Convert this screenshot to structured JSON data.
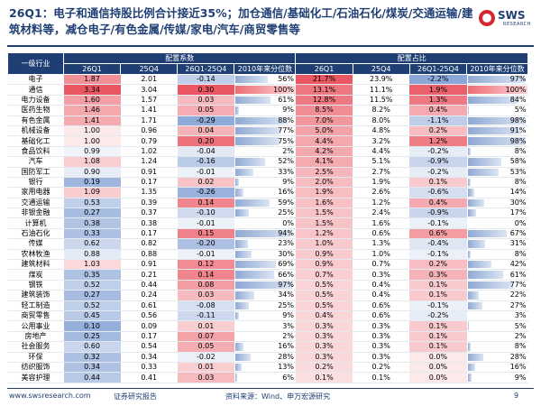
{
  "header": {
    "title": "26Q1：电子和通信持股比例合计接近35%；加仓通信/基础化工/石油石化/煤炭/交通运输/建筑材料等，减仓电子/有色金属/传媒/家电/汽车/商贸零售等",
    "logo": "SWS",
    "logo_sub": "RESEARCH"
  },
  "table": {
    "row_header": "一级行业",
    "groups": [
      "配置系数",
      "配置占比"
    ],
    "columns": [
      "26Q1",
      "25Q4",
      "26Q1-25Q4",
      "2010年来分位数",
      "26Q1",
      "25Q4",
      "26Q1-25Q4",
      "2010年来分位数"
    ],
    "rows": [
      [
        "电子",
        "1.87",
        "2.01",
        "-0.14",
        "56%",
        "21.7%",
        "23.9%",
        "-2.2%",
        "97%"
      ],
      [
        "通信",
        "3.34",
        "3.04",
        "0.30",
        "100%",
        "13.1%",
        "11.1%",
        "1.9%",
        "100%"
      ],
      [
        "电力设备",
        "1.60",
        "1.57",
        "0.03",
        "61%",
        "12.8%",
        "11.5%",
        "1.3%",
        "84%"
      ],
      [
        "医药生物",
        "1.46",
        "1.41",
        "0.05",
        "9%",
        "8.5%",
        "8.2%",
        "0.4%",
        "5%"
      ],
      [
        "有色金属",
        "1.41",
        "1.71",
        "-0.29",
        "88%",
        "7.0%",
        "8.0%",
        "-1.1%",
        "98%"
      ],
      [
        "机械设备",
        "1.00",
        "0.96",
        "0.04",
        "77%",
        "5.0%",
        "4.8%",
        "0.2%",
        "91%"
      ],
      [
        "基础化工",
        "1.00",
        "0.79",
        "0.20",
        "75%",
        "4.4%",
        "3.2%",
        "1.2%",
        "98%"
      ],
      [
        "食品饮料",
        "0.99",
        "1.02",
        "-0.04",
        "2%",
        "4.2%",
        "4.4%",
        "-0.2%",
        "8%"
      ],
      [
        "汽车",
        "1.08",
        "1.24",
        "-0.16",
        "52%",
        "4.1%",
        "5.1%",
        "-0.9%",
        "58%"
      ],
      [
        "国防军工",
        "0.90",
        "0.91",
        "-0.01",
        "33%",
        "2.5%",
        "2.7%",
        "-0.2%",
        "53%"
      ],
      [
        "银行",
        "0.19",
        "0.17",
        "0.02",
        "9%",
        "2.0%",
        "1.9%",
        "0.1%",
        "8%"
      ],
      [
        "家用电器",
        "1.09",
        "1.35",
        "-0.26",
        "16%",
        "1.9%",
        "2.6%",
        "-0.6%",
        "14%"
      ],
      [
        "交通运输",
        "0.53",
        "0.39",
        "0.14",
        "59%",
        "1.6%",
        "1.2%",
        "0.4%",
        "30%"
      ],
      [
        "非银金融",
        "0.27",
        "0.37",
        "-0.10",
        "25%",
        "1.5%",
        "2.4%",
        "-0.9%",
        "17%"
      ],
      [
        "计算机",
        "0.38",
        "0.38",
        "-0.01",
        "0%",
        "1.5%",
        "1.6%",
        "-0.1%",
        "0%"
      ],
      [
        "石油石化",
        "0.33",
        "0.17",
        "0.15",
        "94%",
        "1.2%",
        "0.6%",
        "0.6%",
        "67%"
      ],
      [
        "传媒",
        "0.62",
        "0.82",
        "-0.20",
        "23%",
        "1.0%",
        "1.3%",
        "-0.4%",
        "31%"
      ],
      [
        "农林牧渔",
        "0.88",
        "0.88",
        "-0.01",
        "30%",
        "0.9%",
        "1.0%",
        "-0.1%",
        "8%"
      ],
      [
        "建筑材料",
        "1.03",
        "0.91",
        "0.12",
        "69%",
        "0.9%",
        "0.7%",
        "0.2%",
        "42%"
      ],
      [
        "煤炭",
        "0.35",
        "0.21",
        "0.14",
        "66%",
        "0.7%",
        "0.3%",
        "0.3%",
        "61%"
      ],
      [
        "钢铁",
        "0.52",
        "0.44",
        "0.08",
        "97%",
        "0.5%",
        "0.4%",
        "0.1%",
        "77%"
      ],
      [
        "建筑装饰",
        "0.27",
        "0.24",
        "0.03",
        "34%",
        "0.5%",
        "0.4%",
        "0.1%",
        "22%"
      ],
      [
        "轻工制造",
        "0.52",
        "0.61",
        "-0.08",
        "25%",
        "0.5%",
        "0.6%",
        "-0.1%",
        "27%"
      ],
      [
        "商贸零售",
        "0.45",
        "0.56",
        "-0.11",
        "9%",
        "0.4%",
        "0.6%",
        "-0.2%",
        "3%"
      ],
      [
        "公用事业",
        "0.10",
        "0.09",
        "0.01",
        "3%",
        "0.3%",
        "0.3%",
        "0.1%",
        "5%"
      ],
      [
        "房地产",
        "0.25",
        "0.17",
        "0.07",
        "2%",
        "0.3%",
        "0.3%",
        "0.1%",
        "2%"
      ],
      [
        "社会服务",
        "0.60",
        "0.54",
        "0.05",
        "16%",
        "0.3%",
        "0.3%",
        "0.1%",
        "8%"
      ],
      [
        "环保",
        "0.32",
        "0.34",
        "-0.02",
        "28%",
        "0.3%",
        "0.3%",
        "0.0%",
        "28%"
      ],
      [
        "纺织服饰",
        "0.34",
        "0.33",
        "0.01",
        "13%",
        "0.2%",
        "0.2%",
        "0.0%",
        "16%"
      ],
      [
        "美容护理",
        "0.44",
        "0.41",
        "0.03",
        "6%",
        "0.1%",
        "0.1%",
        "0.0%",
        "9%"
      ]
    ]
  },
  "footer": {
    "website": "www.swsresearch.com",
    "report_type": "证券研究报告",
    "source": "资料来源：Wind、申万宏源研究",
    "page": "9"
  }
}
